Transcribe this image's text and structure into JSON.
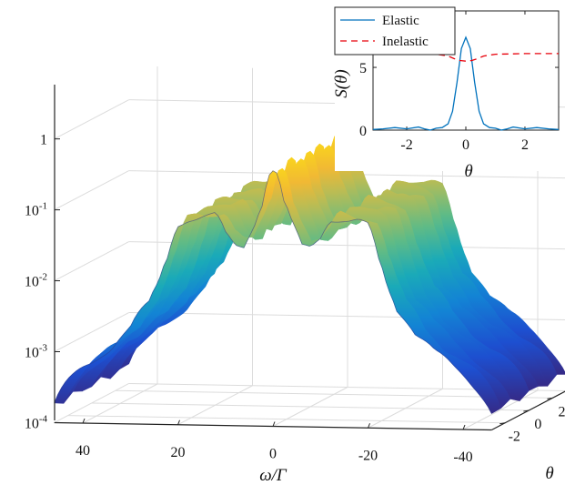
{
  "chart_data": [
    {
      "type": "surface",
      "x_axis": {
        "label": "ω/Γ",
        "ticks": [
          40,
          20,
          0,
          -20,
          -40
        ],
        "range": [
          46,
          -46
        ]
      },
      "y_axis": {
        "label": "θ",
        "ticks": [
          -2,
          0,
          2
        ],
        "range": [
          -3.14,
          3.14
        ]
      },
      "z_axis": {
        "scale": "log",
        "ticks": [
          "10^-4",
          "10^-3",
          "10^-2",
          "10^-1",
          "1"
        ],
        "range": [
          0.0001,
          3
        ]
      },
      "surface_profile_at_theta_zero": {
        "omega": [
          46,
          42,
          38,
          34,
          30,
          26,
          24,
          22,
          20,
          18,
          16,
          14,
          12,
          10,
          8,
          6,
          4,
          2,
          1,
          0,
          -1,
          -2,
          -4,
          -6,
          -8,
          -10,
          -12,
          -14,
          -16,
          -18,
          -20,
          -22,
          -24,
          -26,
          -30,
          -34,
          -38,
          -42,
          -46
        ],
        "value": [
          0.00018,
          0.00045,
          0.00075,
          0.0012,
          0.0022,
          0.005,
          0.01,
          0.025,
          0.07,
          0.08,
          0.08,
          0.085,
          0.09,
          0.05,
          0.035,
          0.035,
          0.07,
          0.15,
          0.35,
          0.4,
          0.35,
          0.15,
          0.07,
          0.035,
          0.035,
          0.05,
          0.09,
          0.085,
          0.08,
          0.08,
          0.07,
          0.025,
          0.01,
          0.005,
          0.0022,
          0.0012,
          0.00075,
          0.00045,
          0.00018
        ]
      }
    },
    {
      "type": "line",
      "xlabel": "θ",
      "ylabel": "S(θ)",
      "xticks": [
        -2,
        0,
        2
      ],
      "yticks": [
        0,
        5
      ],
      "xlim": [
        -3.14,
        3.14
      ],
      "ylim": [
        0,
        9.5
      ],
      "legend_position": "top-left",
      "series": [
        {
          "name": "Elastic",
          "color": "#0072BD",
          "x": [
            -3.14,
            -2.8,
            -2.4,
            -2.0,
            -1.6,
            -1.4,
            -1.2,
            -1.0,
            -0.8,
            -0.6,
            -0.45,
            -0.3,
            -0.15,
            0,
            0.15,
            0.3,
            0.45,
            0.6,
            0.8,
            1.0,
            1.2,
            1.4,
            1.6,
            2.0,
            2.4,
            2.8,
            3.14
          ],
          "y": [
            0.05,
            0.1,
            0.2,
            0.1,
            0.25,
            0.1,
            0.0,
            0.15,
            0.2,
            0.5,
            1.5,
            3.8,
            6.5,
            7.4,
            6.5,
            3.8,
            1.5,
            0.5,
            0.2,
            0.15,
            0.0,
            0.1,
            0.25,
            0.1,
            0.2,
            0.1,
            0.05
          ]
        },
        {
          "name": "Inelastic",
          "color": "#E8000B",
          "x": [
            -3.14,
            -2.0,
            -1.0,
            -0.6,
            -0.4,
            -0.2,
            0,
            0.2,
            0.4,
            0.6,
            1.0,
            2.0,
            3.14
          ],
          "y": [
            6.1,
            6.1,
            6.05,
            5.9,
            5.7,
            5.55,
            5.5,
            5.55,
            5.7,
            5.9,
            6.05,
            6.1,
            6.1
          ]
        }
      ]
    }
  ]
}
